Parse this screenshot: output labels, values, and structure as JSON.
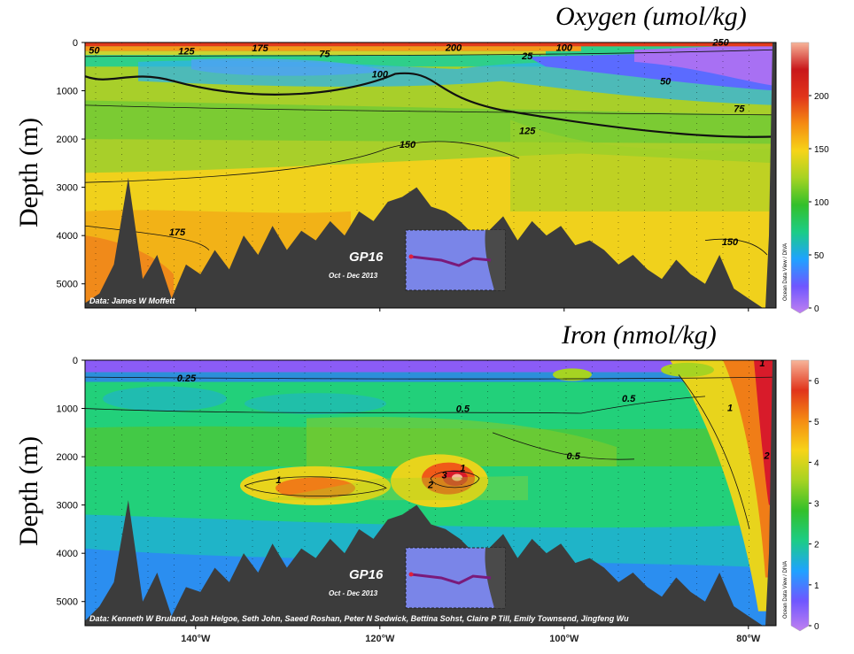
{
  "chart_data": [
    {
      "type": "heatmap",
      "title": "Oxygen (umol/kg)",
      "ylabel": "Depth (m)",
      "xlabel": "",
      "yticks": [
        0,
        1000,
        2000,
        3000,
        4000,
        5000
      ],
      "ylim": [
        0,
        5500
      ],
      "xlim": [
        -152,
        -77
      ],
      "colorbar": {
        "min": 0,
        "max": 250,
        "ticks": [
          0,
          50,
          100,
          150,
          200
        ]
      },
      "contour_labels": [
        {
          "text": "50",
          "lon": -151,
          "depth": 230
        },
        {
          "text": "125",
          "lon": -141,
          "depth": 250
        },
        {
          "text": "175",
          "lon": -133,
          "depth": 180
        },
        {
          "text": "75",
          "lon": -126,
          "depth": 300
        },
        {
          "text": "200",
          "lon": -112,
          "depth": 170
        },
        {
          "text": "25",
          "lon": -104,
          "depth": 350
        },
        {
          "text": "100",
          "lon": -100,
          "depth": 170
        },
        {
          "text": "250",
          "lon": -83,
          "depth": 60
        },
        {
          "text": "100",
          "lon": -120,
          "depth": 720
        },
        {
          "text": "50",
          "lon": -89,
          "depth": 870
        },
        {
          "text": "75",
          "lon": -81,
          "depth": 1440
        },
        {
          "text": "125",
          "lon": -104,
          "depth": 1900
        },
        {
          "text": "150",
          "lon": -117,
          "depth": 2180
        },
        {
          "text": "175",
          "lon": -142,
          "depth": 4000
        },
        {
          "text": "150",
          "lon": -82,
          "depth": 4200
        }
      ],
      "credit": "Data: James W Moffett",
      "inset": {
        "title": "GP16",
        "subtitle": "Oct - Dec 2013"
      },
      "watermark": "Ocean Data View / DIVA"
    },
    {
      "type": "heatmap",
      "title": "Iron (nmol/kg)",
      "ylabel": "Depth (m)",
      "xlabel": "",
      "xticks": [
        "140°W",
        "120°W",
        "100°W",
        "80°W"
      ],
      "xtick_values": [
        -140,
        -120,
        -100,
        -80
      ],
      "yticks": [
        0,
        1000,
        2000,
        3000,
        4000,
        5000
      ],
      "ylim": [
        0,
        5500
      ],
      "xlim": [
        -152,
        -77
      ],
      "colorbar": {
        "min": 0,
        "max": 6.5,
        "ticks": [
          0,
          1,
          2,
          3,
          4,
          5,
          6
        ]
      },
      "contour_labels": [
        {
          "text": "0.25",
          "lon": -141,
          "depth": 440
        },
        {
          "text": "0.5",
          "lon": -111,
          "depth": 1070
        },
        {
          "text": "0.5",
          "lon": -93,
          "depth": 860
        },
        {
          "text": "0.5",
          "lon": -99,
          "depth": 2050
        },
        {
          "text": "1",
          "lon": -131,
          "depth": 2550
        },
        {
          "text": "3",
          "lon": -113,
          "depth": 2450
        },
        {
          "text": "2",
          "lon": -114.5,
          "depth": 2650
        },
        {
          "text": "1",
          "lon": -111,
          "depth": 2300
        },
        {
          "text": "1",
          "lon": -82,
          "depth": 1050
        },
        {
          "text": "1",
          "lon": -78.5,
          "depth": 130
        },
        {
          "text": "2",
          "lon": -78,
          "depth": 2040
        }
      ],
      "credit": "Data: Kenneth W Bruland, Josh Helgoe, Seth John, Saeed Roshan, Peter N Sedwick, Bettina Sohst, Claire P Till, Emily Townsend, Jingfeng Wu",
      "inset": {
        "title": "GP16",
        "subtitle": "Oct - Dec 2013"
      },
      "watermark": "Ocean Data View / DIVA"
    }
  ],
  "colors": {
    "seafloor": "#3c3c3c",
    "oxygen_scale": [
      "#c081f0",
      "#6f56ff",
      "#1fa2ff",
      "#1ccc86",
      "#33c02a",
      "#a6d322",
      "#f6d418",
      "#f58b13",
      "#e1341a",
      "#c9171a",
      "#f7b59a"
    ],
    "iron_scale": [
      "#c081f0",
      "#6f56ff",
      "#1fa2ff",
      "#1ccc86",
      "#33c02a",
      "#a6d322",
      "#f6d418",
      "#f58b13",
      "#e1341a",
      "#f7b59a"
    ]
  }
}
